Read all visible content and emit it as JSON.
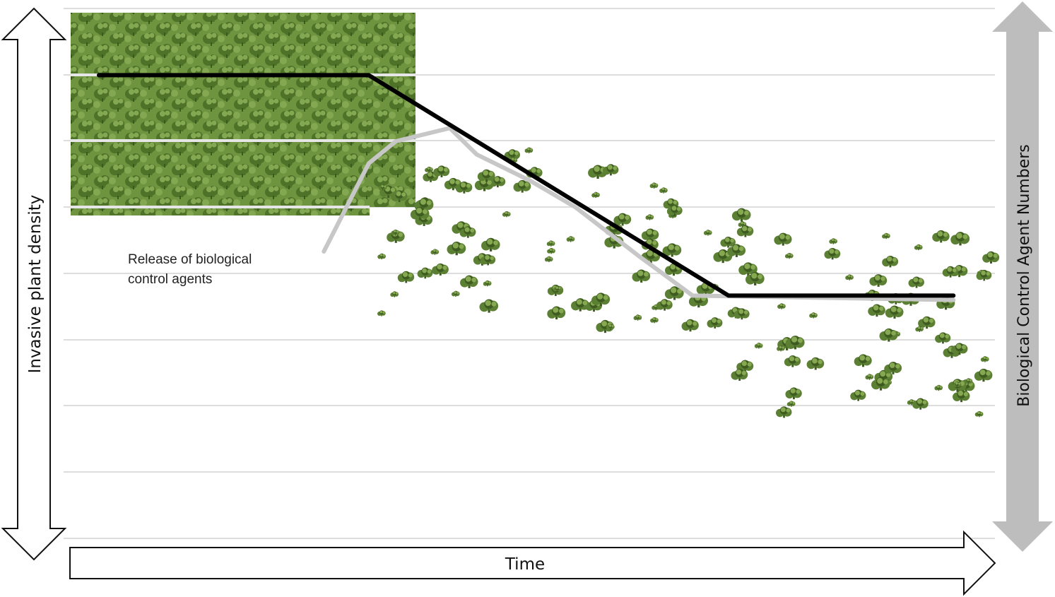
{
  "axes": {
    "y_left_label": "Invasive plant density",
    "y_right_label": "Biological Control Agent Numbers",
    "x_label": "Time"
  },
  "annotation": {
    "line1": "Release of biological",
    "line2": "control agents"
  },
  "series": {
    "plant_density": [
      [
        0,
        9
      ],
      [
        3,
        9
      ],
      [
        7,
        4
      ],
      [
        9.5,
        4
      ]
    ],
    "agent_numbers": [
      [
        2.5,
        5
      ],
      [
        3,
        7
      ],
      [
        3.3,
        7.5
      ],
      [
        3.9,
        7.8
      ],
      [
        4.2,
        7.2
      ],
      [
        4.8,
        6.6
      ],
      [
        5.3,
        6
      ],
      [
        6,
        4.9
      ],
      [
        6.6,
        4
      ],
      [
        9.5,
        3.9
      ]
    ]
  },
  "colors": {
    "plant_density_line": "#000000",
    "agent_line": "#c7c7c7",
    "gridline": "#dddddd",
    "foliage": "#5b7f33",
    "foliage_dark": "#3e5c20",
    "foliage_light": "#86a851",
    "right_arrow": "#bdbdbd"
  },
  "icons": {
    "vegetation": "shrub-icon"
  }
}
